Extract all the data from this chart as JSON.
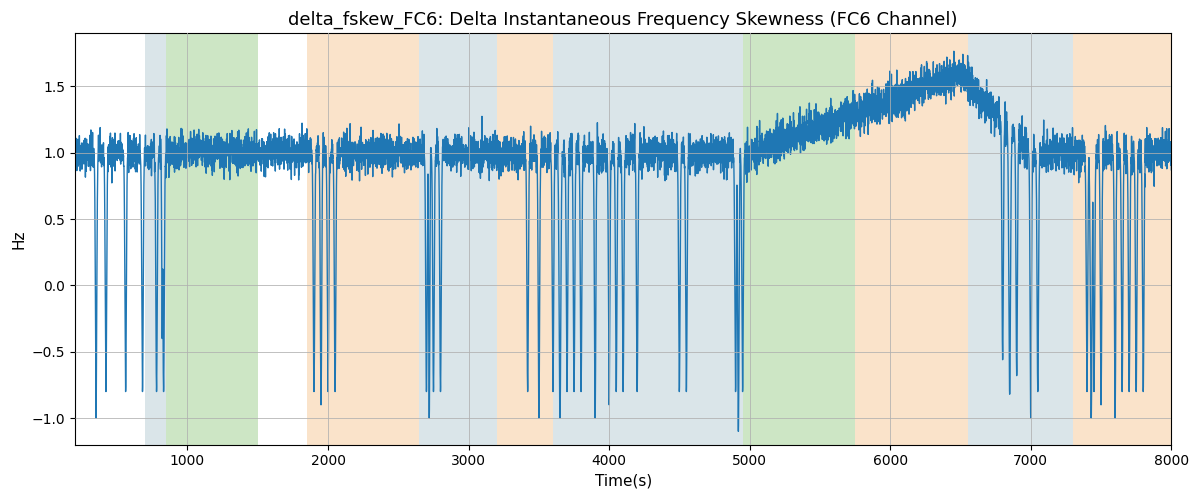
{
  "title": "delta_fskew_FC6: Delta Instantaneous Frequency Skewness (FC6 Channel)",
  "xlabel": "Time(s)",
  "ylabel": "Hz",
  "xlim": [
    200,
    8000
  ],
  "ylim": [
    -1.2,
    1.9
  ],
  "title_fontsize": 13,
  "label_fontsize": 11,
  "line_color": "#1f77b4",
  "line_width": 1.0,
  "background_color": "#ffffff",
  "grid_color": "#b0b0b0",
  "bands": [
    {
      "xmin": 700,
      "xmax": 850,
      "color": "#aec6cf",
      "alpha": 0.45
    },
    {
      "xmin": 850,
      "xmax": 1500,
      "color": "#90c97f",
      "alpha": 0.45
    },
    {
      "xmin": 1850,
      "xmax": 2650,
      "color": "#f5c18a",
      "alpha": 0.45
    },
    {
      "xmin": 2650,
      "xmax": 3200,
      "color": "#aec6cf",
      "alpha": 0.45
    },
    {
      "xmin": 3200,
      "xmax": 3600,
      "color": "#f5c18a",
      "alpha": 0.45
    },
    {
      "xmin": 3600,
      "xmax": 4950,
      "color": "#aec6cf",
      "alpha": 0.45
    },
    {
      "xmin": 4950,
      "xmax": 5750,
      "color": "#90c97f",
      "alpha": 0.45
    },
    {
      "xmin": 5750,
      "xmax": 6550,
      "color": "#f5c18a",
      "alpha": 0.45
    },
    {
      "xmin": 6550,
      "xmax": 7300,
      "color": "#aec6cf",
      "alpha": 0.45
    },
    {
      "xmin": 7300,
      "xmax": 8000,
      "color": "#f5c18a",
      "alpha": 0.45
    }
  ],
  "seed": 42,
  "n_points": 7800
}
